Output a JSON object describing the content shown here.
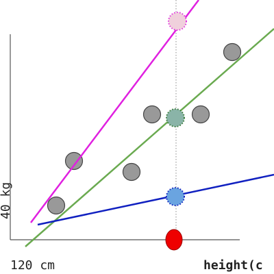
{
  "axes": {
    "x_start_label": "120 cm",
    "x_title": "height(c",
    "y_start_label": "40 kg"
  }
}
